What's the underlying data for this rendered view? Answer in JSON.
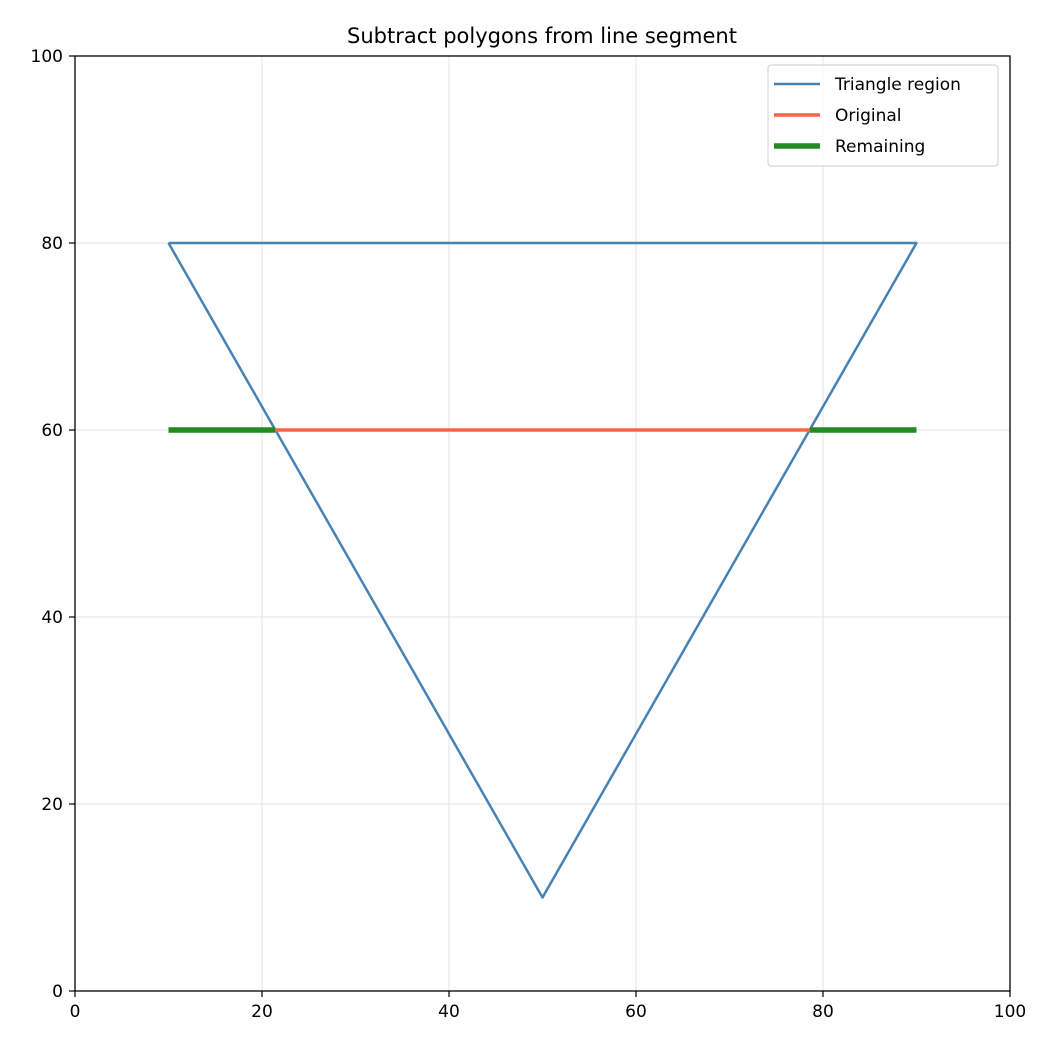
{
  "chart_data": {
    "type": "line",
    "title": "Subtract polygons from line segment",
    "xlabel": "",
    "ylabel": "",
    "xlim": [
      0,
      100
    ],
    "ylim": [
      0,
      100
    ],
    "x_ticks": [
      0,
      20,
      40,
      60,
      80,
      100
    ],
    "y_ticks": [
      0,
      20,
      40,
      60,
      80,
      100
    ],
    "grid": true,
    "legend_position": "top-right",
    "series": [
      {
        "name": "Triangle region",
        "color": "#4682b4",
        "points": [
          [
            10,
            80
          ],
          [
            90,
            80
          ],
          [
            50,
            10
          ],
          [
            10,
            80
          ]
        ]
      },
      {
        "name": "Original",
        "color": "#ff6347",
        "points": [
          [
            10,
            60
          ],
          [
            90,
            60
          ]
        ]
      },
      {
        "name": "Remaining",
        "color": "#228b22",
        "segments": [
          [
            [
              10,
              60
            ],
            [
              21.4,
              60
            ]
          ],
          [
            [
              78.6,
              60
            ],
            [
              90,
              60
            ]
          ]
        ]
      }
    ]
  }
}
